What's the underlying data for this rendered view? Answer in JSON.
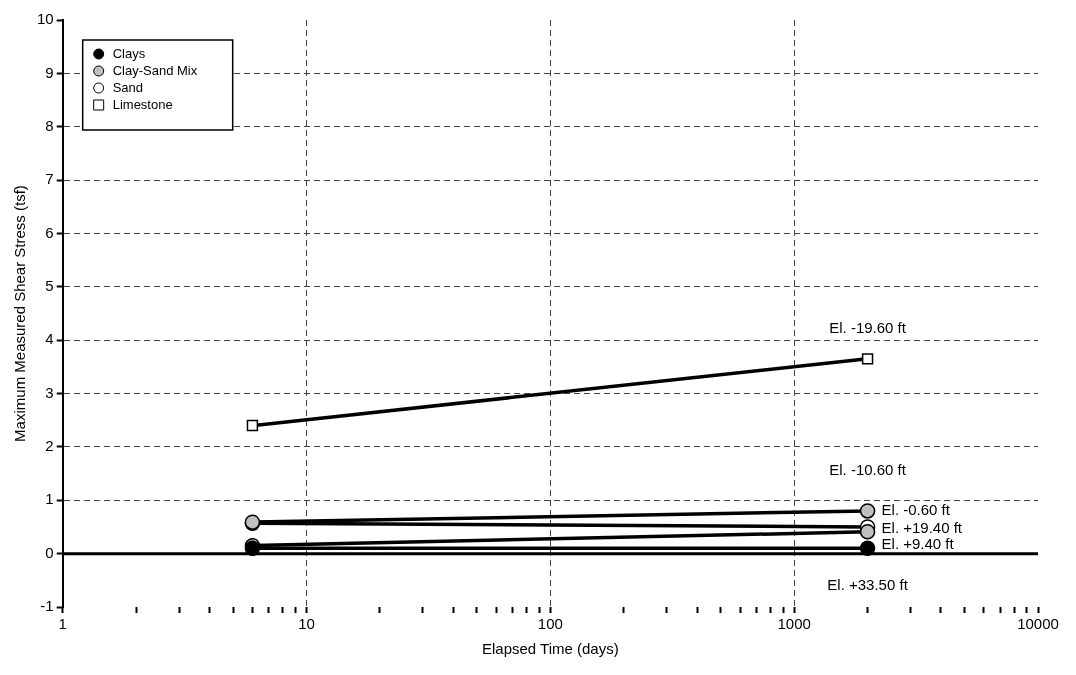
{
  "chart_data": {
    "type": "line",
    "xlabel": "Elapsed Time (days)",
    "ylabel": "Maximum Measured Shear Stress (tsf)",
    "log": "x",
    "grid": true,
    "legend": "top left",
    "xlim": [
      1,
      10000
    ],
    "ylim": [
      -1,
      10
    ],
    "xticks": [
      1,
      {
        "value": 2,
        "label": null
      },
      {
        "value": 3,
        "label": null
      },
      {
        "value": 4,
        "label": null
      },
      {
        "value": 5,
        "label": null
      },
      {
        "value": 6,
        "label": null
      },
      {
        "value": 7,
        "label": null
      },
      {
        "value": 8,
        "label": null
      },
      {
        "value": 9,
        "label": null
      },
      10,
      {
        "value": 20,
        "label": null
      },
      {
        "value": 30,
        "label": null
      },
      {
        "value": 40,
        "label": null
      },
      {
        "value": 50,
        "label": null
      },
      {
        "value": 60,
        "label": null
      },
      {
        "value": 70,
        "label": null
      },
      {
        "value": 80,
        "label": null
      },
      {
        "value": 90,
        "label": null
      },
      100,
      {
        "value": 200,
        "label": null
      },
      {
        "value": 300,
        "label": null
      },
      {
        "value": 400,
        "label": null
      },
      {
        "value": 500,
        "label": null
      },
      {
        "value": 600,
        "label": null
      },
      {
        "value": 700,
        "label": null
      },
      {
        "value": 800,
        "label": null
      },
      {
        "value": 900,
        "label": null
      },
      1000,
      {
        "value": 2000,
        "label": null
      },
      {
        "value": 3000,
        "label": null
      },
      {
        "value": 4000,
        "label": null
      },
      {
        "value": 5000,
        "label": null
      },
      {
        "value": 6000,
        "label": null
      },
      {
        "value": 7000,
        "label": null
      },
      {
        "value": 8000,
        "label": null
      },
      {
        "value": 9000,
        "label": null
      },
      10000
    ],
    "yticks": [
      -1,
      0,
      1,
      2,
      3,
      4,
      5,
      6,
      7,
      8,
      9,
      10
    ],
    "x": [
      6,
      2000
    ],
    "series": [
      {
        "name": "Clays",
        "color": "#000000",
        "marker": "circle",
        "values": [
          0.1,
          0.1
        ]
      },
      {
        "name": "Clay-Sand Mix",
        "color": "#c0c0c0",
        "marker": "circle",
        "values": [
          0.59,
          0.8
        ]
      },
      {
        "color": "#c0c0c0",
        "marker": "circle",
        "values": [
          0.15,
          0.41
        ]
      },
      {
        "name": "Sand",
        "color": "#ffffff",
        "marker": "circle",
        "values": [
          0.57,
          0.5
        ]
      },
      {
        "name": "Limestone",
        "color": "#ffffff",
        "marker": "square",
        "values": [
          2.4,
          3.65
        ]
      }
    ],
    "annotations": [
      "El. -19.60 ft",
      "El. -10.60 ft",
      "El. -0.60 ft",
      "El. +19.40 ft",
      "El. +9.40 ft",
      "El. +33.50 ft"
    ]
  }
}
